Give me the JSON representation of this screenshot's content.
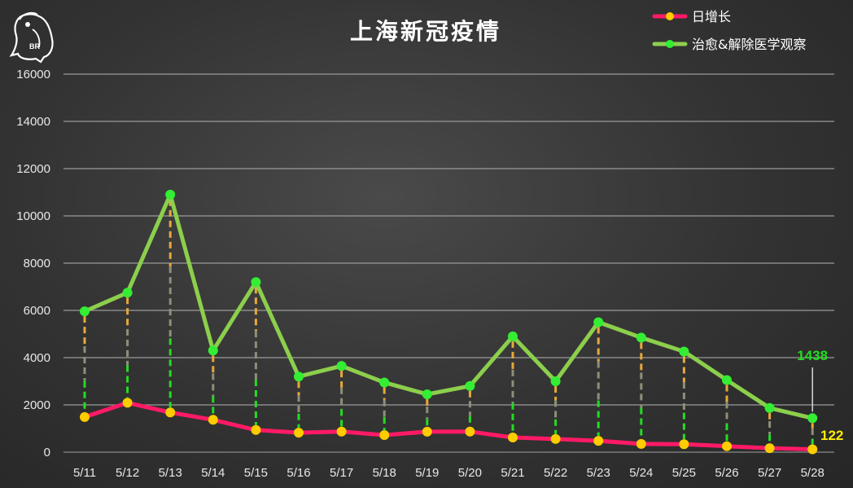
{
  "chart_data": {
    "type": "line",
    "title": "上海新冠疫情",
    "categories": [
      "5/11",
      "5/12",
      "5/13",
      "5/14",
      "5/15",
      "5/16",
      "5/17",
      "5/18",
      "5/19",
      "5/20",
      "5/21",
      "5/22",
      "5/23",
      "5/24",
      "5/25",
      "5/26",
      "5/27",
      "5/28"
    ],
    "yticks": [
      0,
      2000,
      4000,
      6000,
      8000,
      10000,
      12000,
      14000,
      16000
    ],
    "ylim": [
      0,
      16000
    ],
    "grid": true,
    "legend_position": "top-right",
    "series": [
      {
        "name": "日增长",
        "color": "#ff1a66",
        "marker_color": "#ffcc00",
        "values": [
          1487,
          2089,
          1681,
          1369,
          938,
          823,
          869,
          722,
          868,
          869,
          621,
          558,
          480,
          351,
          335,
          252,
          170,
          122
        ]
      },
      {
        "name": "治愈&解除医学观察",
        "color": "#8ccf4c",
        "marker_color": "#33ee33",
        "values": [
          5960,
          6750,
          10900,
          4300,
          7200,
          3200,
          3650,
          2950,
          2450,
          2800,
          4900,
          3000,
          5500,
          4850,
          4260,
          3050,
          1870,
          1438
        ]
      }
    ],
    "annotations": [
      {
        "text": "1438",
        "series": 1,
        "color": "#22dd22"
      },
      {
        "text": "122",
        "series": 0,
        "color": "#ffee00"
      }
    ]
  }
}
